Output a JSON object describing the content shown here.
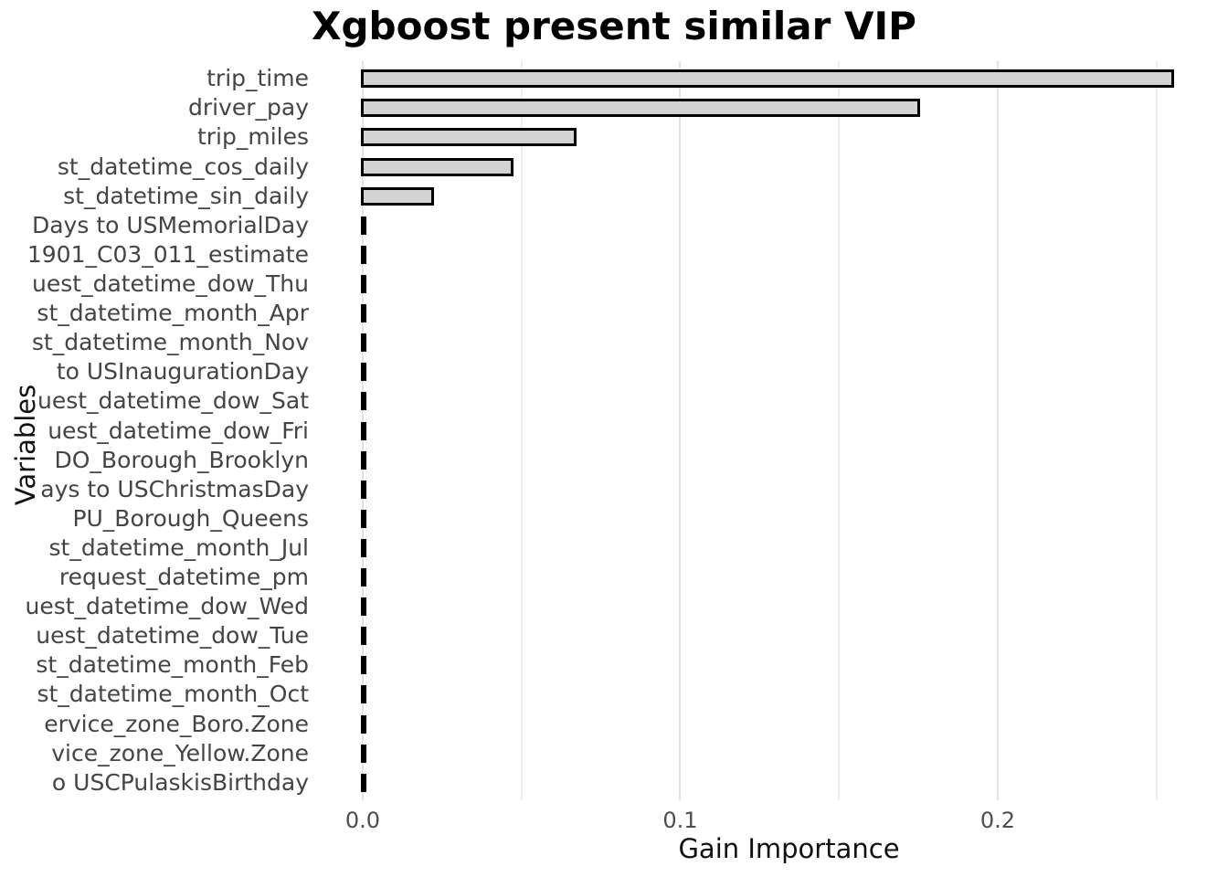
{
  "chart_data": {
    "type": "bar",
    "orientation": "horizontal",
    "title": "Xgboost present similar VIP",
    "xlabel": "Gain Importance",
    "ylabel": "Variables",
    "categories": [
      "trip_time",
      "driver_pay",
      "trip_miles",
      "st_datetime_cos_daily",
      "st_datetime_sin_daily",
      "Days to USMemorialDay",
      "1901_C03_011_estimate",
      "uest_datetime_dow_Thu",
      "st_datetime_month_Apr",
      "st_datetime_month_Nov",
      "to USInaugurationDay",
      "uest_datetime_dow_Sat",
      "uest_datetime_dow_Fri",
      "DO_Borough_Brooklyn",
      "ays to USChristmasDay",
      "PU_Borough_Queens",
      "st_datetime_month_Jul",
      "request_datetime_pm",
      "uest_datetime_dow_Wed",
      "uest_datetime_dow_Tue",
      "st_datetime_month_Feb",
      "st_datetime_month_Oct",
      "ervice_zone_Boro.Zone",
      "vice_zone_Yellow.Zone",
      "o USCPulaskisBirthday"
    ],
    "values": [
      0.256,
      0.176,
      0.068,
      0.048,
      0.023,
      0.0012,
      0.0012,
      0.0011,
      0.0011,
      0.001,
      0.001,
      0.001,
      0.0009,
      0.0009,
      0.0009,
      0.0008,
      0.0008,
      0.0008,
      0.0007,
      0.0007,
      0.0007,
      0.0006,
      0.0006,
      0.0006,
      0.0005
    ],
    "xlim": [
      0,
      0.2685
    ],
    "x_tick_values": [
      0.0,
      0.1,
      0.2
    ],
    "x_tick_labels": [
      "0.0",
      "0.1",
      "0.2"
    ],
    "x_minor_gridlines": [
      0.05,
      0.15,
      0.25
    ],
    "grid": "vertical-only",
    "legend": false,
    "styles": {
      "bar_fill": "#d3d3d3",
      "bar_border": "#000000",
      "grid_major_color": "#e3e3e3",
      "grid_minor_color": "#ededed",
      "axis_text_color": "#4d4d4d",
      "title_color": "#000000",
      "background": "#ffffff"
    }
  }
}
